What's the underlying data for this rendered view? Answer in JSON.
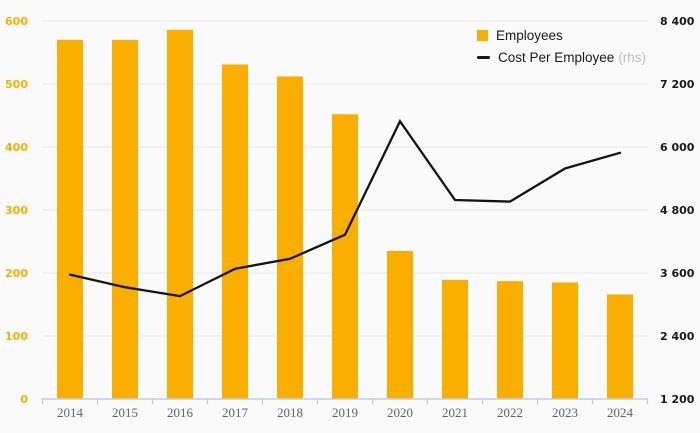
{
  "chart_data": {
    "type": "combo-bar-line",
    "title": "",
    "categories": [
      "2014",
      "2015",
      "2016",
      "2017",
      "2018",
      "2019",
      "2020",
      "2021",
      "2022",
      "2023",
      "2024"
    ],
    "series": [
      {
        "name": "Employees",
        "type": "bar",
        "axis": "left",
        "color": "#F9AE00",
        "values": [
          570,
          570,
          586,
          531,
          512,
          452,
          235,
          189,
          187,
          185,
          166
        ]
      },
      {
        "name": "Cost Per Employee",
        "suffix": "(rhs)",
        "type": "line",
        "axis": "right",
        "color": "#141414",
        "values": [
          3570,
          3330,
          3160,
          3680,
          3870,
          4330,
          6490,
          4990,
          4960,
          5590,
          5890
        ]
      }
    ],
    "left_axis": {
      "min": 0,
      "max": 600,
      "step": 100,
      "tick_labels": [
        "0",
        "100",
        "200",
        "300",
        "400",
        "500",
        "600"
      ],
      "label_color": "#F9AE00"
    },
    "right_axis": {
      "min": 1200,
      "max": 8400,
      "step": 1200,
      "tick_labels": [
        "1 200",
        "2 400",
        "3 600",
        "4 800",
        "6 000",
        "7 200",
        "8 400"
      ],
      "label_color": "#1a1a1a"
    },
    "x_axis": {
      "label_color": "#636363",
      "line_color": "#c4cde0"
    },
    "grid": {
      "visible": true,
      "color": "#e8e8e8"
    },
    "legend": {
      "position": "top-right",
      "items": [
        {
          "label": "Employees",
          "marker": "square",
          "color": "#F9AE00"
        },
        {
          "label": "Cost Per Employee",
          "suffix": "(rhs)",
          "marker": "line",
          "color": "#141414"
        }
      ]
    },
    "background_color": "#fafafa"
  }
}
